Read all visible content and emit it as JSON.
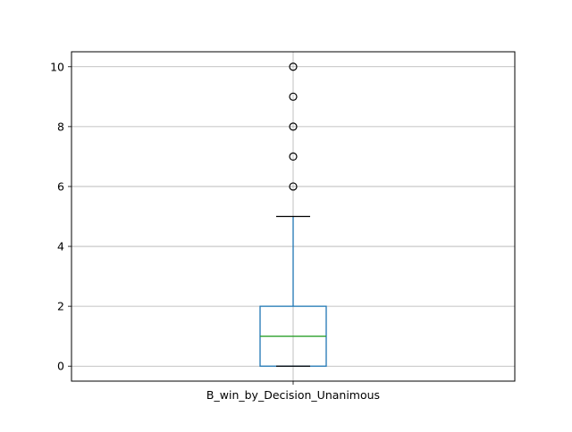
{
  "chart_data": {
    "type": "box",
    "title": "",
    "xlabel": "",
    "ylabel": "",
    "categories": [
      "B_win_by_Decision_Unanimous"
    ],
    "box": {
      "whisker_low": 0,
      "q1": 0,
      "median": 1,
      "q3": 2,
      "whisker_high": 5,
      "outliers": [
        6,
        7,
        8,
        9,
        10
      ]
    },
    "ylim": [
      -0.5,
      10.5
    ],
    "yticks": [
      0,
      2,
      4,
      6,
      8,
      10
    ],
    "grid": true,
    "legend": "none",
    "colors": {
      "box": "#1f77b4",
      "median": "#2ca02c",
      "whisker_cap": "#000000",
      "flier": "#000000",
      "grid": "#b0b0b0"
    }
  }
}
